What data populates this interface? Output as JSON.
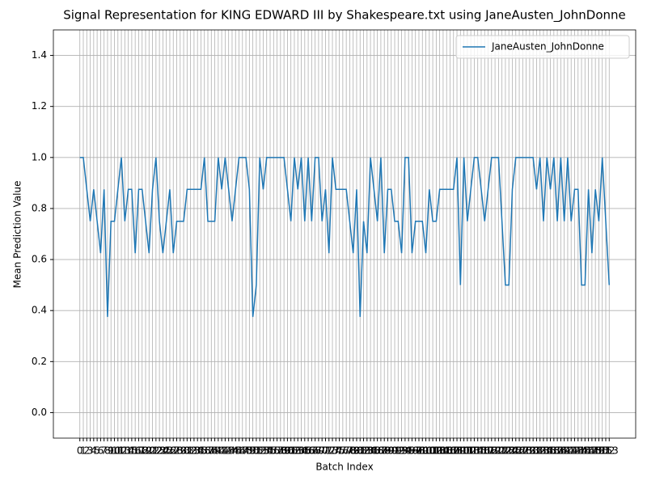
{
  "chart_data": {
    "type": "line",
    "title": "Signal Representation for KING EDWARD III by Shakespeare.txt using JaneAusten_JohnDonne",
    "x_label": "Batch Index",
    "y_label": "Mean Prediction Value",
    "x": [
      0,
      1,
      2,
      3,
      4,
      5,
      6,
      7,
      8,
      9,
      10,
      11,
      12,
      13,
      14,
      15,
      16,
      17,
      18,
      19,
      20,
      21,
      22,
      23,
      24,
      25,
      26,
      27,
      28,
      29,
      30,
      31,
      32,
      33,
      34,
      35,
      36,
      37,
      38,
      39,
      40,
      41,
      42,
      43,
      44,
      45,
      46,
      47,
      48,
      49,
      50,
      51,
      52,
      53,
      54,
      55,
      56,
      57,
      58,
      59,
      60,
      61,
      62,
      63,
      64,
      65,
      66,
      67,
      68,
      69,
      70,
      71,
      72,
      73,
      74,
      75,
      76,
      77,
      78,
      79,
      80,
      81,
      82,
      83,
      84,
      85,
      86,
      87,
      88,
      89,
      90,
      91,
      92,
      93,
      94,
      95,
      96,
      97,
      98,
      99,
      100,
      101,
      102,
      103,
      104,
      105,
      106,
      107,
      108,
      109,
      110,
      111,
      112,
      113,
      114,
      115,
      116,
      117,
      118,
      119,
      120,
      121,
      122,
      123,
      124,
      125,
      126,
      127,
      128,
      129,
      130,
      131,
      132,
      133,
      134,
      135,
      136,
      137,
      138,
      139,
      140,
      141,
      142,
      143,
      144,
      145,
      146,
      147,
      148,
      149,
      150,
      151,
      152,
      153
    ],
    "series": [
      {
        "name": "JaneAusten_JohnDonne",
        "color": "#1f77b4",
        "values": [
          1,
          1,
          0.875,
          0.75,
          0.875,
          0.75,
          0.625,
          0.875,
          0.375,
          0.75,
          0.75,
          0.875,
          1,
          0.75,
          0.875,
          0.875,
          0.625,
          0.875,
          0.875,
          0.75,
          0.625,
          0.875,
          1,
          0.75,
          0.625,
          0.75,
          0.875,
          0.625,
          0.75,
          0.75,
          0.75,
          0.875,
          0.875,
          0.875,
          0.875,
          0.875,
          1,
          0.75,
          0.75,
          0.75,
          1,
          0.875,
          1,
          0.875,
          0.75,
          0.875,
          1,
          1,
          1,
          0.875,
          0.375,
          0.5,
          1,
          0.875,
          1,
          1,
          1,
          1,
          1,
          1,
          0.875,
          0.75,
          1,
          0.875,
          1,
          0.75,
          1,
          0.75,
          1,
          1,
          0.75,
          0.875,
          0.625,
          1,
          0.875,
          0.875,
          0.875,
          0.875,
          0.75,
          0.625,
          0.875,
          0.375,
          0.75,
          0.625,
          1,
          0.875,
          0.75,
          1,
          0.625,
          0.875,
          0.875,
          0.75,
          0.75,
          0.625,
          1,
          1,
          0.625,
          0.75,
          0.75,
          0.75,
          0.625,
          0.875,
          0.75,
          0.75,
          0.875,
          0.875,
          0.875,
          0.875,
          0.875,
          1,
          0.5,
          1,
          0.75,
          0.875,
          1,
          1,
          0.875,
          0.75,
          0.875,
          1,
          1,
          1,
          0.75,
          0.5,
          0.5,
          0.875,
          1,
          1,
          1,
          1,
          1,
          1,
          0.875,
          1,
          0.75,
          1,
          0.875,
          1,
          0.75,
          1,
          0.75,
          1,
          0.75,
          0.875,
          0.875,
          0.5,
          0.5,
          0.875,
          0.625,
          0.875,
          0.75,
          1,
          0.75,
          0.5
        ]
      }
    ],
    "xlim": [
      -7.65,
      160.65
    ],
    "xticks": [
      0,
      1,
      2,
      3,
      4,
      5,
      6,
      7,
      8,
      9,
      10,
      11,
      12,
      13,
      14,
      15,
      16,
      17,
      18,
      19,
      20,
      21,
      22,
      23,
      24,
      25,
      26,
      27,
      28,
      29,
      30,
      31,
      32,
      33,
      34,
      35,
      36,
      37,
      38,
      39,
      40,
      41,
      42,
      43,
      44,
      45,
      46,
      47,
      48,
      49,
      50,
      51,
      52,
      53,
      54,
      55,
      56,
      57,
      58,
      59,
      60,
      61,
      62,
      63,
      64,
      65,
      66,
      67,
      68,
      69,
      70,
      71,
      72,
      73,
      74,
      75,
      76,
      77,
      78,
      79,
      80,
      81,
      82,
      83,
      84,
      85,
      86,
      87,
      88,
      89,
      90,
      91,
      92,
      93,
      94,
      95,
      96,
      97,
      98,
      99,
      100,
      101,
      102,
      103,
      104,
      105,
      106,
      107,
      108,
      109,
      110,
      111,
      112,
      113,
      114,
      115,
      116,
      117,
      118,
      119,
      120,
      121,
      122,
      123,
      124,
      125,
      126,
      127,
      128,
      129,
      130,
      131,
      132,
      133,
      134,
      135,
      136,
      137,
      138,
      139,
      140,
      141,
      142,
      143,
      144,
      145,
      146,
      147,
      148,
      149,
      150,
      151,
      152,
      153
    ],
    "ylim": [
      -0.1,
      1.5
    ],
    "yticks": [
      {
        "value": 0,
        "label": "0.0"
      },
      0.2,
      0.4,
      0.6,
      0.8,
      {
        "value": 1,
        "label": "1.0"
      },
      1.2,
      1.4
    ],
    "grid": true,
    "legend": "upper right"
  }
}
